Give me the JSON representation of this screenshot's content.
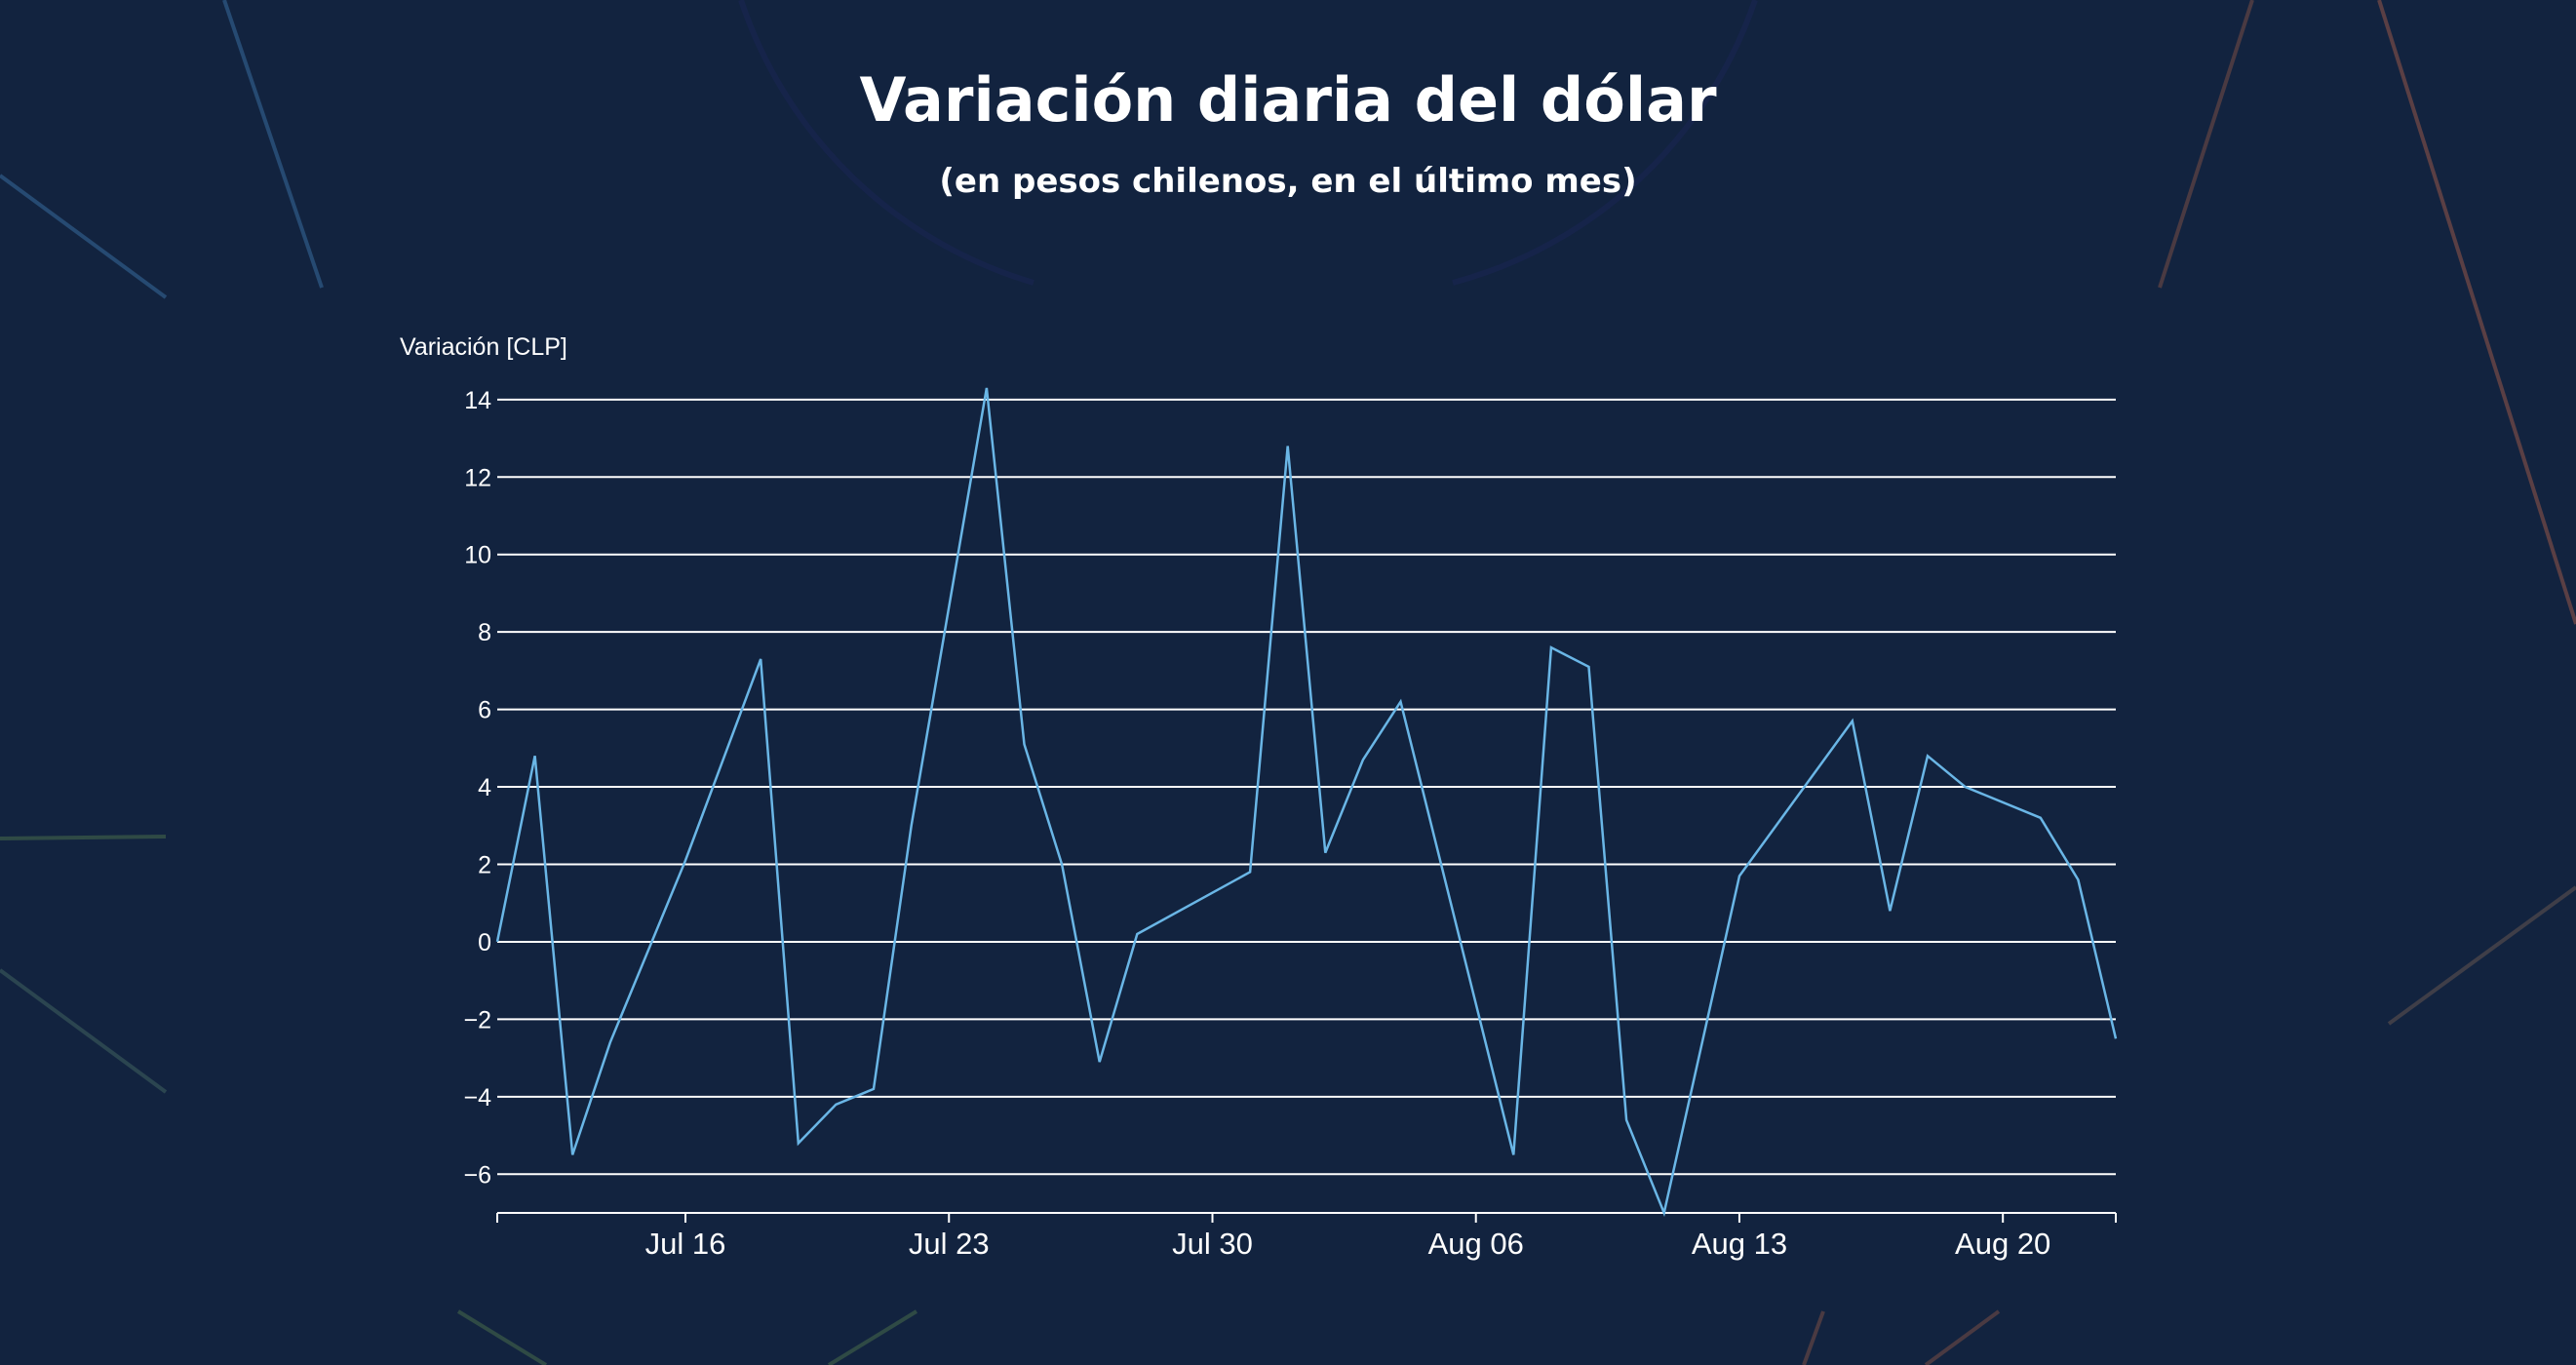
{
  "title": "Variación diaria del dólar",
  "subtitle": "(en pesos chilenos, en el último mes)",
  "colors": {
    "background": "#12233f",
    "line": "#6ab6e6",
    "grid": "#ffffff",
    "text": "#ffffff"
  },
  "chart_data": {
    "type": "line",
    "title": "Variación diaria del dólar",
    "subtitle": "(en pesos chilenos, en el último mes)",
    "xlabel": "",
    "ylabel": "Variación [CLP]",
    "ylim": [
      -7,
      14.6
    ],
    "yticks": [
      -6,
      -4,
      -2,
      0,
      2,
      4,
      6,
      8,
      10,
      12,
      14
    ],
    "xlim": [
      0,
      43
    ],
    "xticks": [
      {
        "day": 5,
        "label": "Jul 16"
      },
      {
        "day": 12,
        "label": "Jul 23"
      },
      {
        "day": 19,
        "label": "Jul 30"
      },
      {
        "day": 26,
        "label": "Aug 06"
      },
      {
        "day": 33,
        "label": "Aug 13"
      },
      {
        "day": 40,
        "label": "Aug 20"
      }
    ],
    "grid": true,
    "series": [
      {
        "name": "Variación",
        "x": [
          0,
          1,
          2,
          3,
          5,
          7,
          8,
          9,
          10,
          11,
          13,
          14,
          15,
          16,
          17,
          20,
          21,
          22,
          23,
          24,
          27,
          28,
          29,
          30,
          31,
          33,
          36,
          37,
          38,
          39,
          41,
          42,
          43
        ],
        "values": [
          0.0,
          4.8,
          -5.5,
          -2.6,
          2.1,
          7.3,
          -5.2,
          -4.2,
          -3.8,
          3.0,
          14.3,
          5.1,
          2.0,
          -3.1,
          0.2,
          1.8,
          12.8,
          2.3,
          4.7,
          6.2,
          -5.5,
          7.6,
          7.1,
          -4.6,
          -7.0,
          1.7,
          5.7,
          0.8,
          4.8,
          4.0,
          3.2,
          1.6,
          -2.5
        ]
      }
    ]
  }
}
